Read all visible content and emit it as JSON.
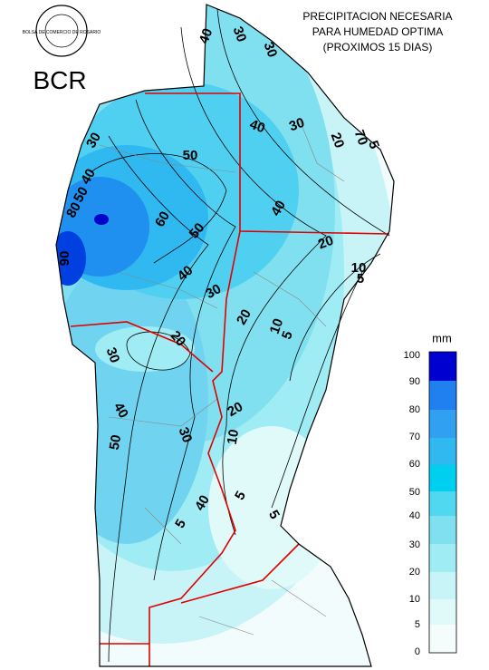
{
  "header": {
    "title": [
      "PRECIPITACION NECESARIA",
      "PARA HUMEDAD OPTIMA",
      "(PROXIMOS 15 DIAS)"
    ],
    "logo": "BCR",
    "seal": "BOLSA DE COMERCIO DE ROSARIO"
  },
  "legend": {
    "unit": "mm",
    "levels": [
      "100",
      "90",
      "80",
      "70",
      "60",
      "50",
      "40",
      "30",
      "20",
      "10",
      "5",
      "0"
    ]
  },
  "map": {
    "contour_labels": [
      "40",
      "30",
      "30",
      "40",
      "30",
      "20",
      "70",
      "5",
      "50",
      "40",
      "30",
      "50",
      "60",
      "40",
      "80",
      "90",
      "50",
      "20",
      "40",
      "10",
      "5",
      "30",
      "20",
      "10",
      "5",
      "20",
      "30",
      "40",
      "50",
      "30",
      "20",
      "10",
      "5",
      "40",
      "5",
      "5"
    ]
  }
}
